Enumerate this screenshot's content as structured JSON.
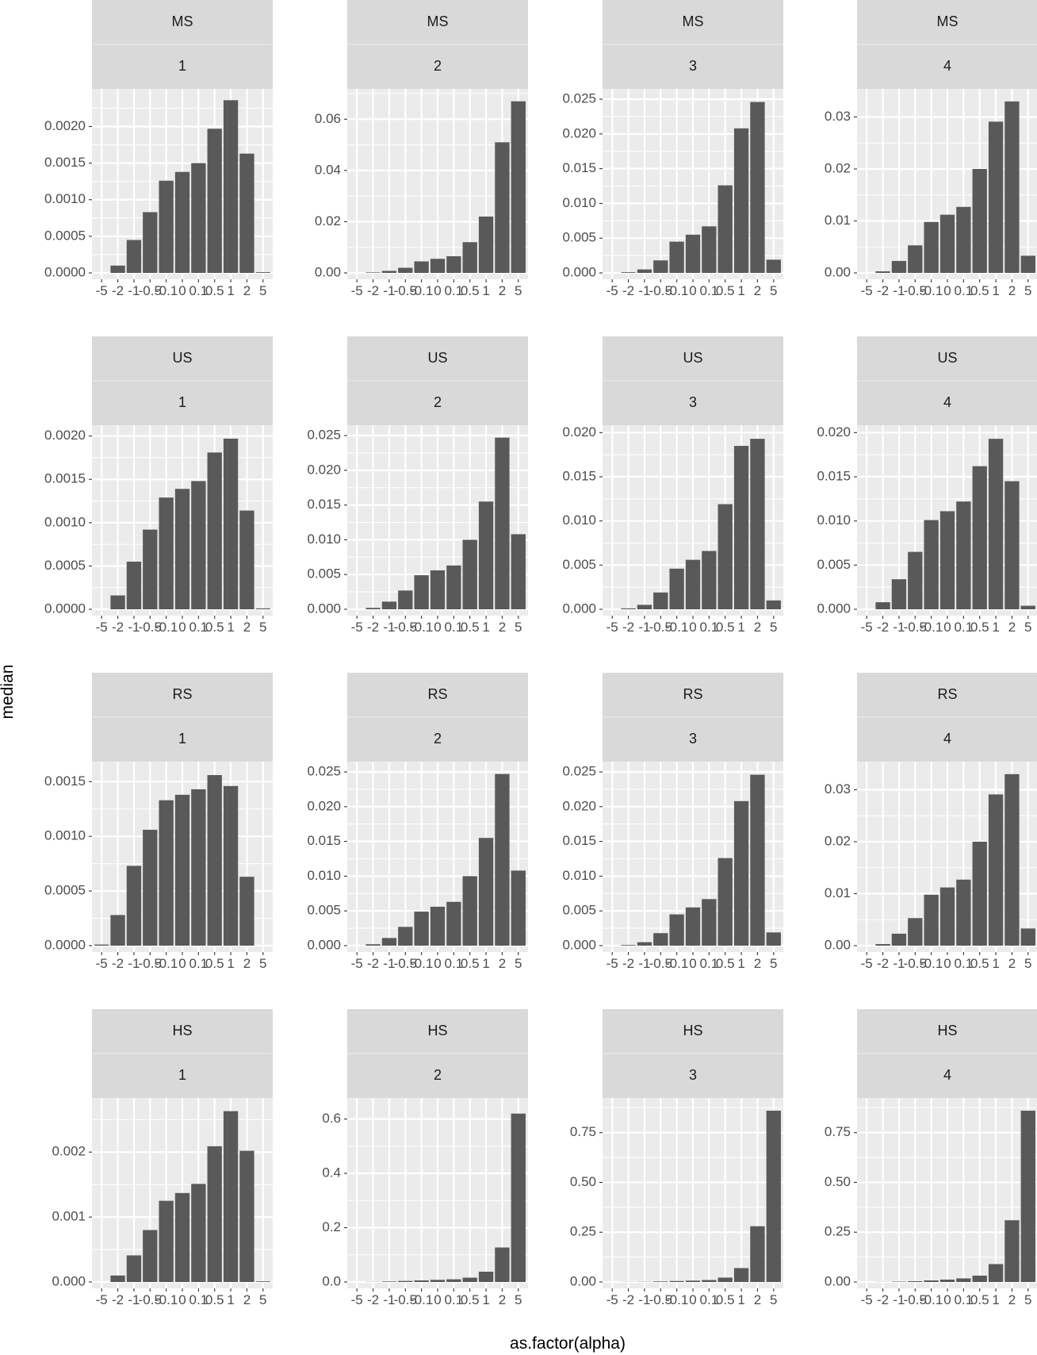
{
  "chart_data": {
    "type": "bar",
    "layout": "facet-grid 4x4",
    "xlabel": "as.factor(alpha)",
    "ylabel": "median",
    "categories": [
      "-5",
      "-2",
      "-1",
      "-0.5",
      "-0.1",
      "0",
      "0.1",
      "0.5",
      "1",
      "2",
      "5"
    ],
    "x_tick_labels": [
      "-5",
      "-2",
      "-1",
      "-0.5",
      "-0.1",
      "0",
      "0.1",
      "0.5",
      "1",
      "2",
      "5"
    ],
    "panels": [
      {
        "strip1": "MS",
        "strip2": "1",
        "ymax": 0.00245,
        "yticks": [
          0,
          0.0005,
          0.001,
          0.0015,
          0.002
        ],
        "ytick_labels": [
          "0.0000",
          "0.0005",
          "0.0010",
          "0.0015",
          "0.0020"
        ],
        "values": [
          0,
          0.0001,
          0.00045,
          0.00083,
          0.00126,
          0.00138,
          0.0015,
          0.00197,
          0.00236,
          0.00163,
          1e-05
        ]
      },
      {
        "strip1": "MS",
        "strip2": "2",
        "ymax": 0.07,
        "yticks": [
          0,
          0.02,
          0.04,
          0.06
        ],
        "ytick_labels": [
          "0.00",
          "0.02",
          "0.04",
          "0.06"
        ],
        "values": [
          0,
          0.0002,
          0.0008,
          0.002,
          0.0045,
          0.0055,
          0.0065,
          0.012,
          0.022,
          0.051,
          0.067
        ]
      },
      {
        "strip1": "MS",
        "strip2": "3",
        "ymax": 0.0258,
        "yticks": [
          0,
          0.005,
          0.01,
          0.015,
          0.02,
          0.025
        ],
        "ytick_labels": [
          "0.000",
          "0.005",
          "0.010",
          "0.015",
          "0.020",
          "0.025"
        ],
        "values": [
          0,
          0.0001,
          0.0005,
          0.0018,
          0.0045,
          0.0055,
          0.0067,
          0.0126,
          0.0208,
          0.0246,
          0.0019
        ]
      },
      {
        "strip1": "MS",
        "strip2": "4",
        "ymax": 0.0345,
        "yticks": [
          0,
          0.01,
          0.02,
          0.03
        ],
        "ytick_labels": [
          "0.00",
          "0.01",
          "0.02",
          "0.03"
        ],
        "values": [
          0,
          0.0003,
          0.0023,
          0.0053,
          0.0098,
          0.0112,
          0.0127,
          0.02,
          0.0291,
          0.033,
          0.0033
        ]
      },
      {
        "strip1": "US",
        "strip2": "1",
        "ymax": 0.00207,
        "yticks": [
          0,
          0.0005,
          0.001,
          0.0015,
          0.002
        ],
        "ytick_labels": [
          "0.0000",
          "0.0005",
          "0.0010",
          "0.0015",
          "0.0020"
        ],
        "values": [
          0,
          0.00016,
          0.00055,
          0.00092,
          0.00129,
          0.00139,
          0.00148,
          0.00181,
          0.00197,
          0.00114,
          1e-05
        ]
      },
      {
        "strip1": "US",
        "strip2": "2",
        "ymax": 0.0258,
        "yticks": [
          0,
          0.005,
          0.01,
          0.015,
          0.02,
          0.025
        ],
        "ytick_labels": [
          "0.000",
          "0.005",
          "0.010",
          "0.015",
          "0.020",
          "0.025"
        ],
        "values": [
          0,
          0.0002,
          0.0011,
          0.0027,
          0.0049,
          0.0056,
          0.0063,
          0.01,
          0.0155,
          0.0247,
          0.0108
        ]
      },
      {
        "strip1": "US",
        "strip2": "3",
        "ymax": 0.0203,
        "yticks": [
          0,
          0.005,
          0.01,
          0.015,
          0.02
        ],
        "ytick_labels": [
          "0.000",
          "0.005",
          "0.010",
          "0.015",
          "0.020"
        ],
        "values": [
          0,
          0.0001,
          0.0005,
          0.0019,
          0.0046,
          0.0056,
          0.0066,
          0.0119,
          0.0185,
          0.0193,
          0.001
        ]
      },
      {
        "strip1": "US",
        "strip2": "4",
        "ymax": 0.0203,
        "yticks": [
          0,
          0.005,
          0.01,
          0.015,
          0.02
        ],
        "ytick_labels": [
          "0.000",
          "0.005",
          "0.010",
          "0.015",
          "0.020"
        ],
        "values": [
          0,
          0.0008,
          0.0034,
          0.0065,
          0.0101,
          0.0111,
          0.0122,
          0.0162,
          0.0193,
          0.0145,
          0.0004
        ]
      },
      {
        "strip1": "RS",
        "strip2": "1",
        "ymax": 0.00164,
        "yticks": [
          0,
          0.0005,
          0.001,
          0.0015
        ],
        "ytick_labels": [
          "0.0000",
          "0.0005",
          "0.0010",
          "0.0015"
        ],
        "values": [
          1e-05,
          0.00028,
          0.00073,
          0.00106,
          0.00133,
          0.00138,
          0.00143,
          0.00156,
          0.00146,
          0.00063,
          0
        ]
      },
      {
        "strip1": "RS",
        "strip2": "2",
        "ymax": 0.0258,
        "yticks": [
          0,
          0.005,
          0.01,
          0.015,
          0.02,
          0.025
        ],
        "ytick_labels": [
          "0.000",
          "0.005",
          "0.010",
          "0.015",
          "0.020",
          "0.025"
        ],
        "values": [
          0,
          0.0002,
          0.0011,
          0.0027,
          0.0049,
          0.0056,
          0.0063,
          0.01,
          0.0155,
          0.0247,
          0.0108
        ]
      },
      {
        "strip1": "RS",
        "strip2": "3",
        "ymax": 0.0258,
        "yticks": [
          0,
          0.005,
          0.01,
          0.015,
          0.02,
          0.025
        ],
        "ytick_labels": [
          "0.000",
          "0.005",
          "0.010",
          "0.015",
          "0.020",
          "0.025"
        ],
        "values": [
          0,
          0.0001,
          0.0005,
          0.0018,
          0.0045,
          0.0055,
          0.0067,
          0.0126,
          0.0208,
          0.0246,
          0.0019
        ]
      },
      {
        "strip1": "RS",
        "strip2": "4",
        "ymax": 0.0345,
        "yticks": [
          0,
          0.01,
          0.02,
          0.03
        ],
        "ytick_labels": [
          "0.00",
          "0.01",
          "0.02",
          "0.03"
        ],
        "values": [
          0,
          0.0003,
          0.0023,
          0.0053,
          0.0098,
          0.0112,
          0.0127,
          0.02,
          0.0291,
          0.033,
          0.0033
        ]
      },
      {
        "strip1": "HS",
        "strip2": "1",
        "ymax": 0.00276,
        "yticks": [
          0,
          0.001,
          0.002
        ],
        "ytick_labels": [
          "0.000",
          "0.001",
          "0.002"
        ],
        "values": [
          0,
          0.0001,
          0.00041,
          0.0008,
          0.00125,
          0.00137,
          0.00151,
          0.00209,
          0.00263,
          0.00202,
          1e-05
        ]
      },
      {
        "strip1": "HS",
        "strip2": "2",
        "ymax": 0.66,
        "yticks": [
          0,
          0.2,
          0.4,
          0.6
        ],
        "ytick_labels": [
          "0.0",
          "0.2",
          "0.4",
          "0.6"
        ],
        "values": [
          0,
          0.0005,
          0.002,
          0.004,
          0.006,
          0.008,
          0.01,
          0.016,
          0.038,
          0.127,
          0.62
        ]
      },
      {
        "strip1": "HS",
        "strip2": "3",
        "ymax": 0.9,
        "yticks": [
          0,
          0.25,
          0.5,
          0.75
        ],
        "ytick_labels": [
          "0.00",
          "0.25",
          "0.50",
          "0.75"
        ],
        "values": [
          0,
          0.0005,
          0.001,
          0.003,
          0.005,
          0.007,
          0.01,
          0.022,
          0.07,
          0.28,
          0.86
        ]
      },
      {
        "strip1": "HS",
        "strip2": "4",
        "ymax": 0.9,
        "yticks": [
          0,
          0.25,
          0.5,
          0.75
        ],
        "ytick_labels": [
          "0.00",
          "0.25",
          "0.50",
          "0.75"
        ],
        "values": [
          0,
          0.0005,
          0.002,
          0.004,
          0.008,
          0.012,
          0.018,
          0.032,
          0.09,
          0.31,
          0.86
        ]
      }
    ]
  }
}
